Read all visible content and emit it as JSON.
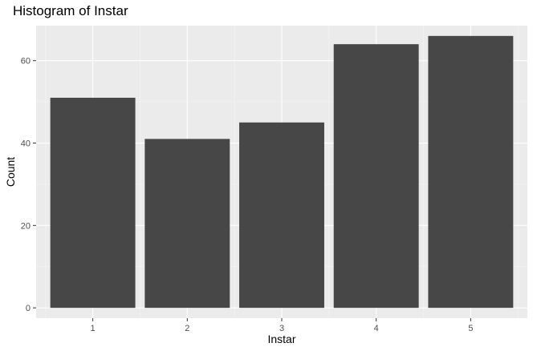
{
  "chart_data": {
    "type": "bar",
    "title": "Histogram of Instar",
    "xlabel": "Instar",
    "ylabel": "Count",
    "categories": [
      "1",
      "2",
      "3",
      "4",
      "5"
    ],
    "values": [
      51,
      41,
      45,
      64,
      66
    ],
    "ylim": [
      -2.5,
      68.5
    ],
    "yticks": [
      0,
      20,
      40,
      60
    ],
    "grid": true,
    "colors": {
      "bar": "#474747",
      "panel": "#ebebeb",
      "grid_major": "#ffffff",
      "grid_minor": "#f5f5f5",
      "tick_text": "#4d4d4d"
    }
  }
}
